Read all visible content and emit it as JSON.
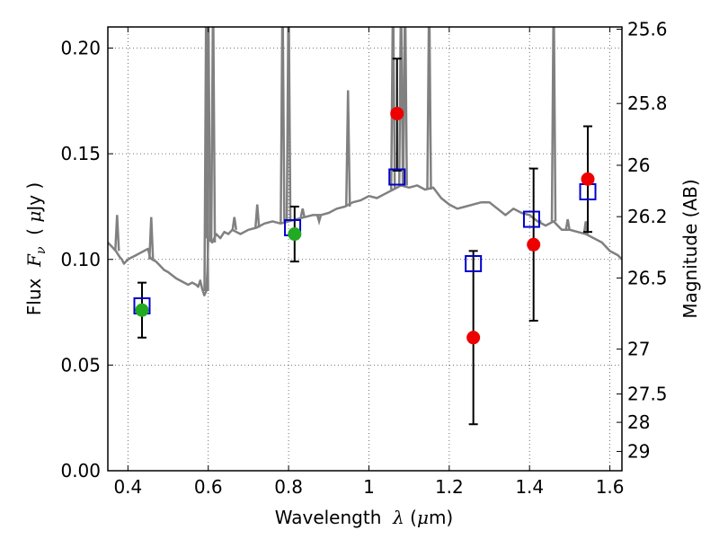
{
  "chart_data": {
    "type": "scatter",
    "xlabel": {
      "prefix": "Wavelength  ",
      "symbol": "λ",
      "unit_open": " (",
      "unit_symbol": "μ",
      "unit_rest": "m)"
    },
    "ylabel": {
      "prefix": "Flux  ",
      "symbol": "F",
      "subscript": "ν",
      "unit_open": "  ( ",
      "unit_symbol": "μ",
      "unit_rest": "Jy )"
    },
    "y2label": "Magnitude (AB)",
    "xlim": [
      0.35,
      1.63
    ],
    "ylim": [
      0.0,
      0.21
    ],
    "grid": true,
    "x_ticks": [
      {
        "value": 0.4,
        "label": "0.4"
      },
      {
        "value": 0.6,
        "label": "0.6"
      },
      {
        "value": 0.8,
        "label": "0.8"
      },
      {
        "value": 1.0,
        "label": "1"
      },
      {
        "value": 1.2,
        "label": "1.2"
      },
      {
        "value": 1.4,
        "label": "1.4"
      },
      {
        "value": 1.6,
        "label": "1.6"
      }
    ],
    "y_ticks": [
      {
        "value": 0.0,
        "label": "0.00"
      },
      {
        "value": 0.05,
        "label": "0.05"
      },
      {
        "value": 0.1,
        "label": "0.10"
      },
      {
        "value": 0.15,
        "label": "0.15"
      },
      {
        "value": 0.2,
        "label": "0.20"
      }
    ],
    "y2_ticks": [
      {
        "value": 25.6,
        "label": "25.6"
      },
      {
        "value": 25.8,
        "label": "25.8"
      },
      {
        "value": 26.0,
        "label": "26"
      },
      {
        "value": 26.2,
        "label": "26.2"
      },
      {
        "value": 26.5,
        "label": "26.5"
      },
      {
        "value": 27.0,
        "label": "27"
      },
      {
        "value": 27.5,
        "label": "27.5"
      },
      {
        "value": 28.0,
        "label": "28"
      },
      {
        "value": 29.0,
        "label": "29"
      }
    ],
    "series": [
      {
        "type": "line",
        "color": "#808080",
        "x": [
          0.35,
          0.36,
          0.37,
          0.38,
          0.385,
          0.39,
          0.4,
          0.41,
          0.42,
          0.43,
          0.44,
          0.45,
          0.455,
          0.46,
          0.47,
          0.48,
          0.49,
          0.5,
          0.52,
          0.54,
          0.55,
          0.56,
          0.57,
          0.575,
          0.58,
          0.585,
          0.59,
          0.595,
          0.598,
          0.6,
          0.605,
          0.61,
          0.615,
          0.62,
          0.63,
          0.64,
          0.65,
          0.66,
          0.67,
          0.68,
          0.7,
          0.72,
          0.74,
          0.76,
          0.78,
          0.8,
          0.82,
          0.84,
          0.86,
          0.88,
          0.9,
          0.92,
          0.94,
          0.96,
          0.98,
          1.0,
          1.02,
          1.04,
          1.06,
          1.08,
          1.1,
          1.12,
          1.14,
          1.16,
          1.18,
          1.2,
          1.22,
          1.24,
          1.26,
          1.28,
          1.3,
          1.32,
          1.34,
          1.36,
          1.38,
          1.4,
          1.42,
          1.44,
          1.46,
          1.48,
          1.5,
          1.52,
          1.54,
          1.56,
          1.58,
          1.6,
          1.62,
          1.63
        ],
        "y": [
          0.108,
          0.106,
          0.104,
          0.101,
          0.1,
          0.098,
          0.1,
          0.101,
          0.102,
          0.103,
          0.104,
          0.105,
          0.101,
          0.1,
          0.099,
          0.097,
          0.095,
          0.094,
          0.091,
          0.089,
          0.088,
          0.089,
          0.088,
          0.087,
          0.09,
          0.086,
          0.083,
          0.085,
          0.095,
          0.11,
          0.109,
          0.108,
          0.11,
          0.112,
          0.11,
          0.113,
          0.112,
          0.114,
          0.113,
          0.112,
          0.114,
          0.115,
          0.117,
          0.118,
          0.117,
          0.118,
          0.119,
          0.12,
          0.121,
          0.121,
          0.122,
          0.124,
          0.125,
          0.127,
          0.128,
          0.13,
          0.129,
          0.131,
          0.133,
          0.135,
          0.134,
          0.135,
          0.133,
          0.134,
          0.129,
          0.126,
          0.124,
          0.125,
          0.126,
          0.127,
          0.127,
          0.124,
          0.121,
          0.124,
          0.122,
          0.121,
          0.118,
          0.116,
          0.118,
          0.114,
          0.114,
          0.113,
          0.112,
          0.11,
          0.108,
          0.104,
          0.102,
          0.1
        ]
      },
      {
        "name": "",
        "type": "scatter",
        "marker": "square-open",
        "color": "#0000cc",
        "points": [
          {
            "x": 0.435,
            "y": 0.078
          },
          {
            "x": 0.81,
            "y": 0.115
          },
          {
            "x": 1.07,
            "y": 0.139
          },
          {
            "x": 1.26,
            "y": 0.098
          },
          {
            "x": 1.405,
            "y": 0.119
          },
          {
            "x": 1.545,
            "y": 0.132
          }
        ]
      },
      {
        "type": "scatter",
        "marker": "circle",
        "color": "#22aa22",
        "points": [
          {
            "x": 0.435,
            "y": 0.076,
            "err_low": 0.063,
            "err_high": 0.089
          },
          {
            "x": 0.815,
            "y": 0.112,
            "err_low": 0.099,
            "err_high": 0.125
          }
        ]
      },
      {
        "type": "scatter",
        "marker": "circle",
        "color": "#ee0000",
        "points": [
          {
            "x": 1.07,
            "y": 0.169,
            "err_low": 0.142,
            "err_high": 0.195
          },
          {
            "x": 1.26,
            "y": 0.063,
            "err_low": 0.022,
            "err_high": 0.104
          },
          {
            "x": 1.41,
            "y": 0.107,
            "err_low": 0.071,
            "err_high": 0.143
          },
          {
            "x": 1.545,
            "y": 0.138,
            "err_low": 0.113,
            "err_high": 0.163
          }
        ]
      }
    ]
  }
}
